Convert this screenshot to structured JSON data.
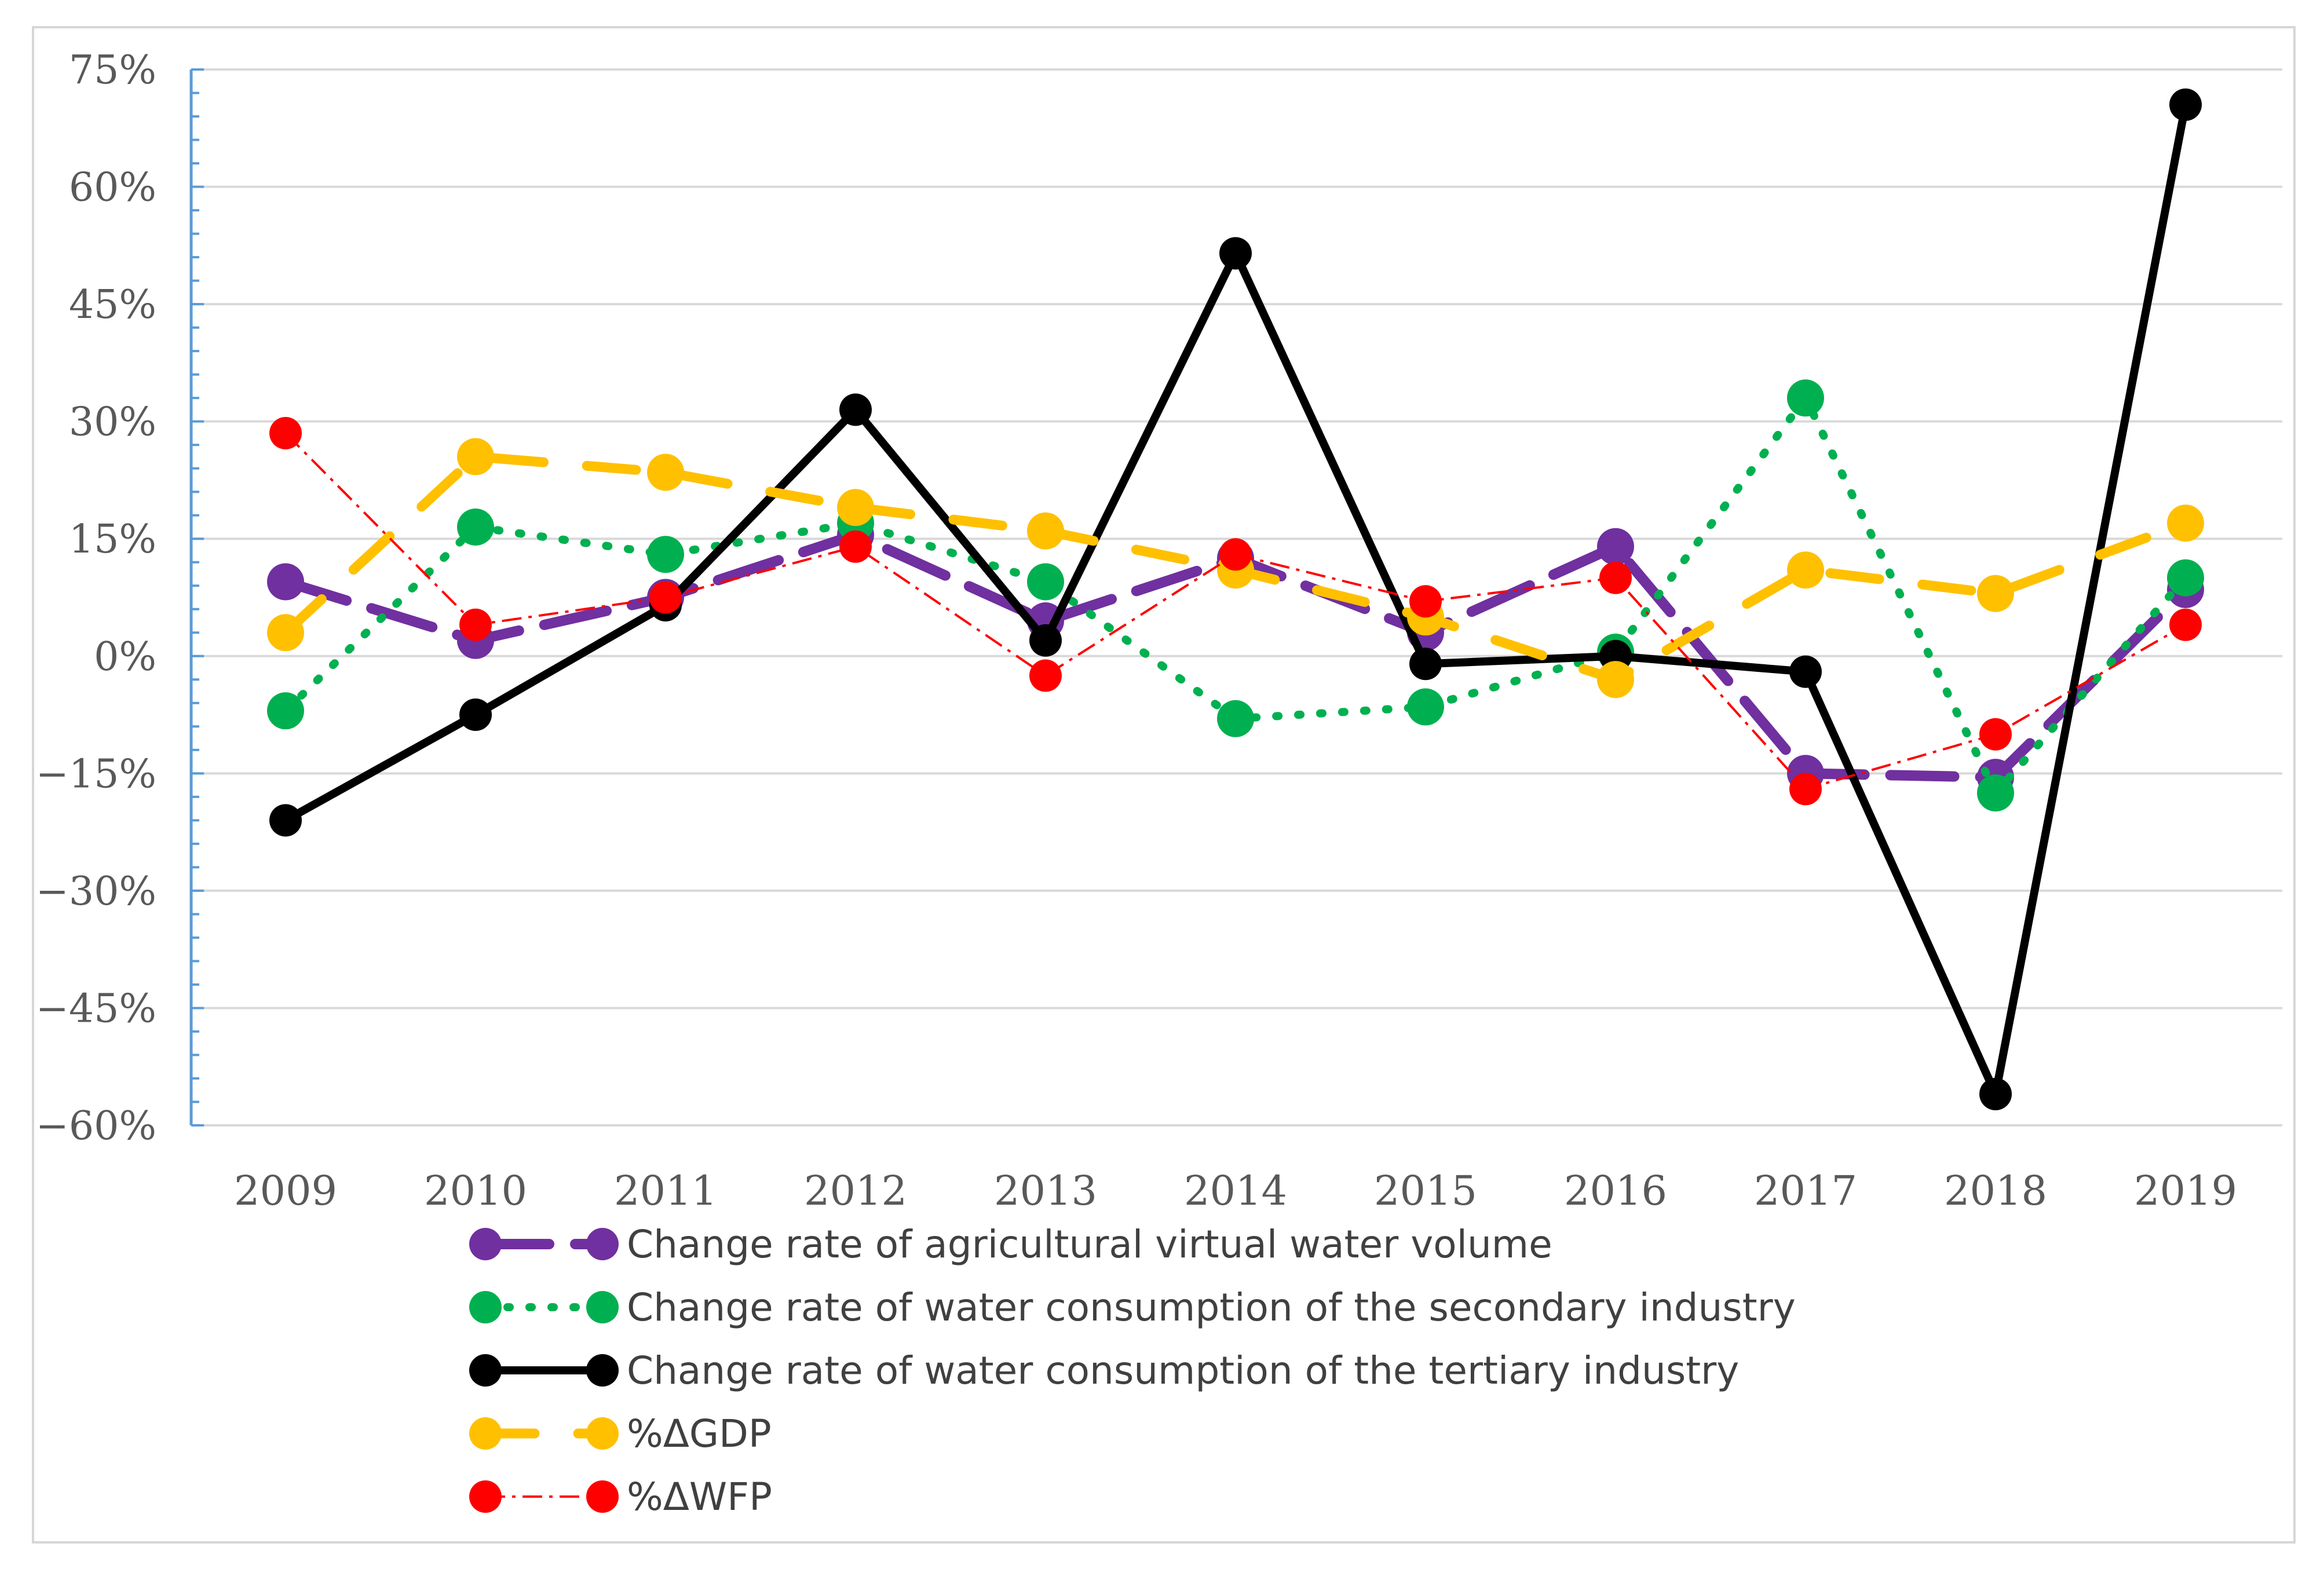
{
  "chart_data": {
    "type": "line",
    "title": "",
    "xlabel": "",
    "ylabel": "",
    "categories": [
      "2009",
      "2010",
      "2011",
      "2012",
      "2013",
      "2014",
      "2015",
      "2016",
      "2017",
      "2018",
      "2019"
    ],
    "ylim": [
      -60,
      75
    ],
    "yticks": [
      75,
      60,
      45,
      30,
      15,
      0,
      -15,
      -30,
      -45,
      -60
    ],
    "ytick_labels": [
      "75%",
      "60%",
      "45%",
      "30%",
      "15%",
      "0%",
      "−15%",
      "−30%",
      "−45%",
      "−60%"
    ],
    "grid": true,
    "legend_position": "bottom",
    "series": [
      {
        "name": "Change rate of agricultural virtual water volume",
        "color": "#7030a0",
        "style": "long-dash",
        "values": [
          9.5,
          2,
          7.5,
          15.5,
          4.5,
          12.5,
          3,
          14,
          -15,
          -15.5,
          8.5
        ]
      },
      {
        "name": "Change rate of water consumption of the secondary industry",
        "color": "#00b050",
        "style": "dotted",
        "values": [
          -7,
          16.5,
          13,
          17,
          9.5,
          -8,
          -6.5,
          0.5,
          33,
          -17.5,
          10
        ]
      },
      {
        "name": "Change rate of water consumption of the tertiary industry",
        "color": "#000000",
        "style": "solid",
        "values": [
          -21,
          -7.5,
          6.5,
          31.5,
          2,
          51.5,
          -1,
          0,
          -2,
          -56,
          70.5
        ]
      },
      {
        "name": "%ΔGDP",
        "color": "#ffc000",
        "style": "dash",
        "values": [
          3,
          25.5,
          23.5,
          19,
          16,
          11,
          5,
          -3,
          11,
          8,
          17
        ]
      },
      {
        "name": "%ΔWFP",
        "color": "#ff0000",
        "style": "dash-dot",
        "values": [
          28.5,
          4,
          7.5,
          14,
          -2.5,
          13,
          7,
          10,
          -17,
          -10,
          4
        ]
      }
    ]
  }
}
